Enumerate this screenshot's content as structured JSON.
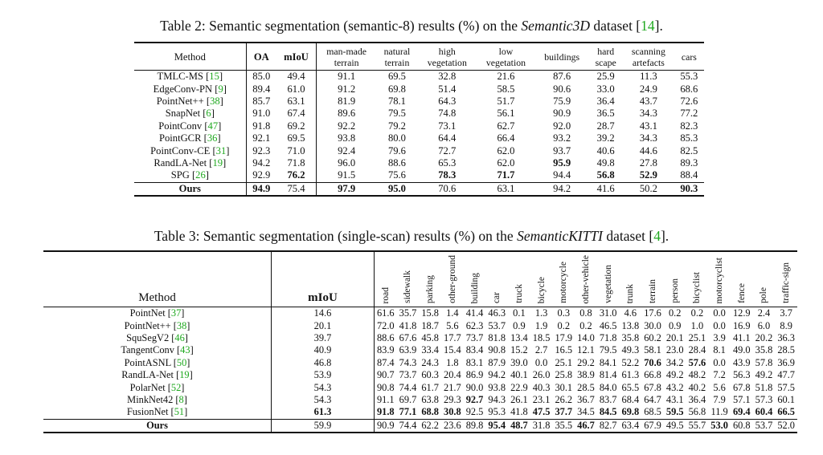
{
  "table2": {
    "caption_prefix": "Table 2: Semantic segmentation (semantic-8) results (%) on the ",
    "caption_dataset": "Semantic3D",
    "caption_mid": " dataset [",
    "caption_cite": "14",
    "caption_suffix": "].",
    "columns": [
      "Method",
      "OA",
      "mIoU",
      "man-made terrain",
      "natural terrain",
      "high vegetation",
      "low vegetation",
      "buildings",
      "hard scape",
      "scanning artefacts",
      "cars"
    ],
    "rows": [
      {
        "name": "TMLC-MS [",
        "cite": "15",
        "values": [
          "85.0",
          "49.4",
          "91.1",
          "69.5",
          "32.8",
          "21.6",
          "87.6",
          "25.9",
          "11.3",
          "55.3"
        ],
        "bold": []
      },
      {
        "name": "EdgeConv-PN [",
        "cite": "9",
        "values": [
          "89.4",
          "61.0",
          "91.2",
          "69.8",
          "51.4",
          "58.5",
          "90.6",
          "33.0",
          "24.9",
          "68.6"
        ],
        "bold": []
      },
      {
        "name": "PointNet++ [",
        "cite": "38",
        "values": [
          "85.7",
          "63.1",
          "81.9",
          "78.1",
          "64.3",
          "51.7",
          "75.9",
          "36.4",
          "43.7",
          "72.6"
        ],
        "bold": []
      },
      {
        "name": "SnapNet [",
        "cite": "6",
        "values": [
          "91.0",
          "67.4",
          "89.6",
          "79.5",
          "74.8",
          "56.1",
          "90.9",
          "36.5",
          "34.3",
          "77.2"
        ],
        "bold": []
      },
      {
        "name": "PointConv [",
        "cite": "47",
        "values": [
          "91.8",
          "69.2",
          "92.2",
          "79.2",
          "73.1",
          "62.7",
          "92.0",
          "28.7",
          "43.1",
          "82.3"
        ],
        "bold": []
      },
      {
        "name": "PointGCR [",
        "cite": "36",
        "values": [
          "92.1",
          "69.5",
          "93.8",
          "80.0",
          "64.4",
          "66.4",
          "93.2",
          "39.2",
          "34.3",
          "85.3"
        ],
        "bold": []
      },
      {
        "name": "PointConv-CE [",
        "cite": "31",
        "values": [
          "92.3",
          "71.0",
          "92.4",
          "79.6",
          "72.7",
          "62.0",
          "93.7",
          "40.6",
          "44.6",
          "82.5"
        ],
        "bold": []
      },
      {
        "name": "RandLA-Net [",
        "cite": "19",
        "values": [
          "94.2",
          "71.8",
          "96.0",
          "88.6",
          "65.3",
          "62.0",
          "95.9",
          "49.8",
          "27.8",
          "89.3"
        ],
        "bold": [
          6
        ]
      },
      {
        "name": "SPG [",
        "cite": "26",
        "values": [
          "92.9",
          "76.2",
          "91.5",
          "75.6",
          "78.3",
          "71.7",
          "94.4",
          "56.8",
          "52.9",
          "88.4"
        ],
        "bold": [
          1,
          4,
          5,
          7,
          8
        ]
      }
    ],
    "ours": {
      "name": "Ours",
      "values": [
        "94.9",
        "75.4",
        "97.9",
        "95.0",
        "70.6",
        "63.1",
        "94.2",
        "41.6",
        "50.2",
        "90.3"
      ],
      "bold": [
        0,
        2,
        3,
        9
      ]
    }
  },
  "table3": {
    "caption_prefix": "Table 3: Semantic segmentation (single-scan) results (%) on the ",
    "caption_dataset": "SemanticKITTI",
    "caption_mid": " dataset [",
    "caption_cite": "4",
    "caption_suffix": "].",
    "columns": [
      "Method",
      "mIoU",
      "road",
      "sidewalk",
      "parking",
      "other-ground",
      "building",
      "car",
      "truck",
      "bicycle",
      "motorcycle",
      "other-vehicle",
      "vegetation",
      "trunk",
      "terrain",
      "person",
      "bicyclist",
      "motorcyclist",
      "fence",
      "pole",
      "traffic-sign"
    ],
    "rows": [
      {
        "name": "PointNet [",
        "cite": "37",
        "values": [
          "14.6",
          "61.6",
          "35.7",
          "15.8",
          "1.4",
          "41.4",
          "46.3",
          "0.1",
          "1.3",
          "0.3",
          "0.8",
          "31.0",
          "4.6",
          "17.6",
          "0.2",
          "0.2",
          "0.0",
          "12.9",
          "2.4",
          "3.7"
        ],
        "bold": []
      },
      {
        "name": "PointNet++ [",
        "cite": "38",
        "values": [
          "20.1",
          "72.0",
          "41.8",
          "18.7",
          "5.6",
          "62.3",
          "53.7",
          "0.9",
          "1.9",
          "0.2",
          "0.2",
          "46.5",
          "13.8",
          "30.0",
          "0.9",
          "1.0",
          "0.0",
          "16.9",
          "6.0",
          "8.9"
        ],
        "bold": []
      },
      {
        "name": "SquSegV2 [",
        "cite": "46",
        "values": [
          "39.7",
          "88.6",
          "67.6",
          "45.8",
          "17.7",
          "73.7",
          "81.8",
          "13.4",
          "18.5",
          "17.9",
          "14.0",
          "71.8",
          "35.8",
          "60.2",
          "20.1",
          "25.1",
          "3.9",
          "41.1",
          "20.2",
          "36.3"
        ],
        "bold": []
      },
      {
        "name": "TangentConv [",
        "cite": "43",
        "values": [
          "40.9",
          "83.9",
          "63.9",
          "33.4",
          "15.4",
          "83.4",
          "90.8",
          "15.2",
          "2.7",
          "16.5",
          "12.1",
          "79.5",
          "49.3",
          "58.1",
          "23.0",
          "28.4",
          "8.1",
          "49.0",
          "35.8",
          "28.5"
        ],
        "bold": []
      },
      {
        "name": "PointASNL [",
        "cite": "50",
        "values": [
          "46.8",
          "87.4",
          "74.3",
          "24.3",
          "1.8",
          "83.1",
          "87.9",
          "39.0",
          "0.0",
          "25.1",
          "29.2",
          "84.1",
          "52.2",
          "70.6",
          "34.2",
          "57.6",
          "0.0",
          "43.9",
          "57.8",
          "36.9"
        ],
        "bold": [
          13,
          15
        ]
      },
      {
        "name": "RandLA-Net [",
        "cite": "19",
        "values": [
          "53.9",
          "90.7",
          "73.7",
          "60.3",
          "20.4",
          "86.9",
          "94.2",
          "40.1",
          "26.0",
          "25.8",
          "38.9",
          "81.4",
          "61.3",
          "66.8",
          "49.2",
          "48.2",
          "7.2",
          "56.3",
          "49.2",
          "47.7"
        ],
        "bold": []
      },
      {
        "name": "PolarNet [",
        "cite": "52",
        "values": [
          "54.3",
          "90.8",
          "74.4",
          "61.7",
          "21.7",
          "90.0",
          "93.8",
          "22.9",
          "40.3",
          "30.1",
          "28.5",
          "84.0",
          "65.5",
          "67.8",
          "43.2",
          "40.2",
          "5.6",
          "67.8",
          "51.8",
          "57.5"
        ],
        "bold": []
      },
      {
        "name": "MinkNet42 [",
        "cite": "8",
        "values": [
          "54.3",
          "91.1",
          "69.7",
          "63.8",
          "29.3",
          "92.7",
          "94.3",
          "26.1",
          "23.1",
          "26.2",
          "36.7",
          "83.7",
          "68.4",
          "64.7",
          "43.1",
          "36.4",
          "7.9",
          "57.1",
          "57.3",
          "60.1"
        ],
        "bold": [
          5
        ]
      },
      {
        "name": "FusionNet [",
        "cite": "51",
        "values": [
          "61.3",
          "91.8",
          "77.1",
          "68.8",
          "30.8",
          "92.5",
          "95.3",
          "41.8",
          "47.5",
          "37.7",
          "34.5",
          "84.5",
          "69.8",
          "68.5",
          "59.5",
          "56.8",
          "11.9",
          "69.4",
          "60.4",
          "66.5"
        ],
        "bold": [
          0,
          1,
          2,
          3,
          4,
          8,
          9,
          11,
          12,
          14,
          17,
          18,
          19
        ]
      }
    ],
    "ours": {
      "name": "Ours",
      "values": [
        "59.9",
        "90.9",
        "74.4",
        "62.2",
        "23.6",
        "89.8",
        "95.4",
        "48.7",
        "31.8",
        "35.5",
        "46.7",
        "82.7",
        "63.4",
        "67.9",
        "49.5",
        "55.7",
        "53.0",
        "60.8",
        "53.7",
        "52.0"
      ],
      "bold": [
        6,
        7,
        10,
        16
      ]
    }
  }
}
